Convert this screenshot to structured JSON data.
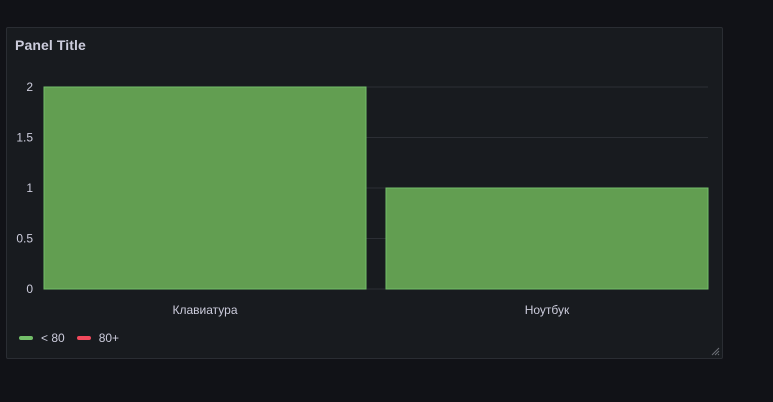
{
  "panel": {
    "title": "Panel Title"
  },
  "chart_data": {
    "type": "bar",
    "categories": [
      "Клавиатура",
      "Ноутбук"
    ],
    "values": [
      2,
      1
    ],
    "ylim": [
      0,
      2
    ],
    "yticks": [
      0,
      0.5,
      1,
      1.5,
      2
    ],
    "ytick_labels": [
      "0",
      "0.5",
      "1",
      "1.5",
      "2"
    ],
    "grid": true,
    "legend_position": "bottom-left",
    "bar_color": "#629e51",
    "bar_border_color": "#73bf69"
  },
  "legend": {
    "items": [
      {
        "label": "< 80",
        "color": "#73bf69"
      },
      {
        "label": "80+",
        "color": "#f2495c"
      }
    ]
  }
}
